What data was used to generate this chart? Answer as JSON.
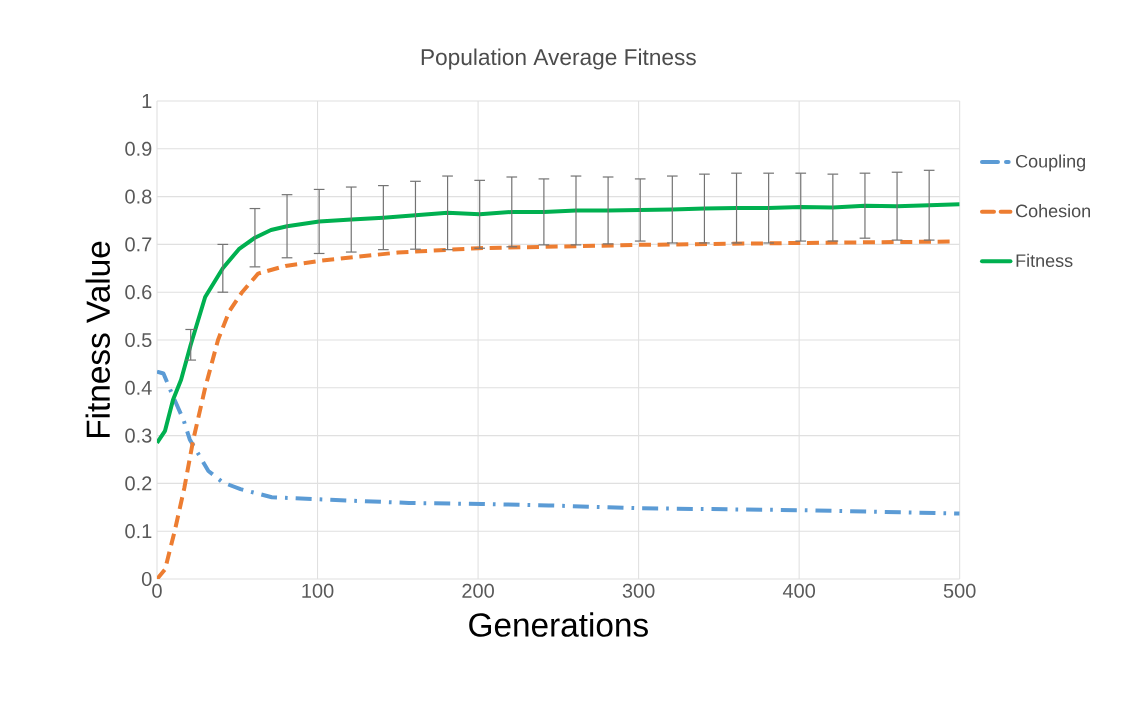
{
  "chart_data": {
    "type": "line",
    "title": "Population Average Fitness",
    "xlabel": "Generations",
    "ylabel": "Fitness Value",
    "xlim": [
      0,
      500
    ],
    "xticks": [
      0,
      100,
      200,
      300,
      400,
      500
    ],
    "ylim": [
      0,
      1
    ],
    "yticks": [
      0,
      0.1,
      0.2,
      0.3,
      0.4,
      0.5,
      0.6,
      0.7,
      0.8,
      0.9,
      1
    ],
    "grid": true,
    "legend": "right",
    "series": [
      {
        "name": "Coupling",
        "color": "#5b9bd5",
        "line_style": "dashdot",
        "x": [
          0,
          4,
          10,
          16.5,
          20.4,
          32,
          41,
          52,
          71.5,
          98.5,
          157,
          202.5,
          244,
          300,
          400,
          500
        ],
        "values": [
          0.434,
          0.43,
          0.382,
          0.333,
          0.292,
          0.226,
          0.202,
          0.188,
          0.171,
          0.167,
          0.159,
          0.157,
          0.154,
          0.148,
          0.144,
          0.137
        ]
      },
      {
        "name": "Cohesion",
        "color": "#ed7d31",
        "line_style": "dashed",
        "x": [
          0,
          5,
          11,
          17,
          22.5,
          30,
          38,
          45,
          53,
          63,
          80,
          102,
          150,
          200,
          300,
          400,
          495
        ],
        "values": [
          0,
          0.02,
          0.1,
          0.19,
          0.29,
          0.4,
          0.5,
          0.56,
          0.6,
          0.639,
          0.655,
          0.666,
          0.683,
          0.692,
          0.699,
          0.703,
          0.706
        ]
      },
      {
        "name": "Fitness",
        "color": "#00b050",
        "line_style": "solid",
        "x": [
          0,
          5,
          10,
          15,
          21,
          30,
          41,
          51,
          61,
          71,
          81,
          101,
          121,
          141,
          161,
          181,
          201,
          221,
          241,
          261,
          281,
          301,
          321,
          341,
          361,
          381,
          401,
          421,
          441,
          461,
          481,
          500
        ],
        "values": [
          0.285,
          0.31,
          0.375,
          0.417,
          0.49,
          0.59,
          0.65,
          0.69,
          0.714,
          0.73,
          0.738,
          0.748,
          0.752,
          0.756,
          0.761,
          0.766,
          0.763,
          0.768,
          0.768,
          0.771,
          0.771,
          0.772,
          0.773,
          0.775,
          0.776,
          0.776,
          0.778,
          0.777,
          0.781,
          0.78,
          0.782,
          0.784
        ],
        "errors": [
          null,
          null,
          null,
          null,
          0.032,
          null,
          0.05,
          null,
          0.061,
          null,
          0.066,
          0.067,
          0.068,
          0.067,
          0.071,
          0.077,
          0.071,
          0.073,
          0.069,
          0.072,
          0.07,
          0.065,
          0.07,
          0.072,
          0.073,
          0.073,
          0.071,
          0.07,
          0.068,
          0.071,
          0.073,
          null
        ]
      }
    ]
  }
}
